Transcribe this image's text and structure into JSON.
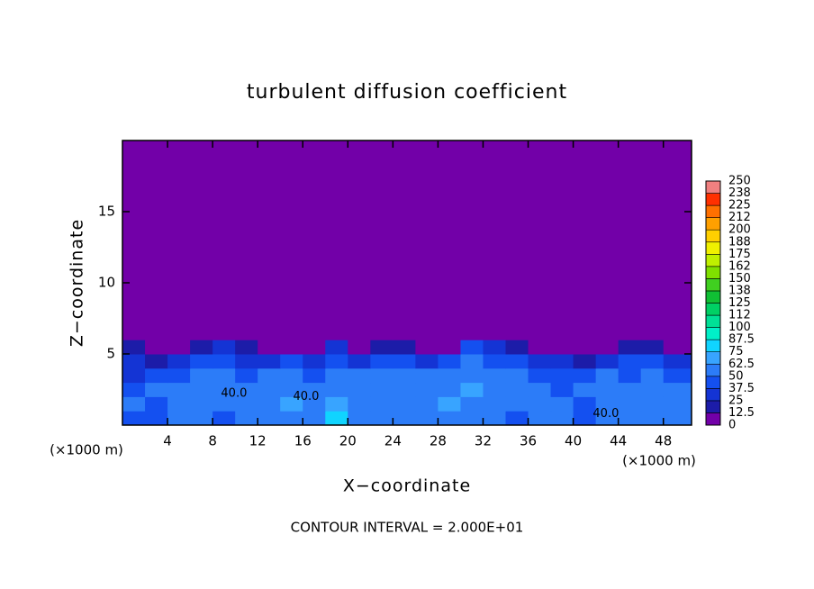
{
  "chart_data": {
    "type": "heatmap",
    "title": "turbulent diffusion coefficient",
    "x_label": "X−coordinate",
    "y_label": "Z−coordinate",
    "x_unit": "(×1000 m)",
    "y_unit": "(×1000 m)",
    "footer": "CONTOUR INTERVAL = 2.000E+01",
    "xlim": [
      0,
      50.5
    ],
    "ylim": [
      0,
      20
    ],
    "xticks": [
      4,
      8,
      12,
      16,
      20,
      24,
      28,
      32,
      36,
      40,
      44,
      48
    ],
    "yticks": [
      5,
      10,
      15
    ],
    "x_edges": [
      0,
      2,
      4,
      6,
      8,
      10,
      12,
      14,
      16,
      18,
      20,
      22,
      24,
      26,
      28,
      30,
      32,
      34,
      36,
      38,
      40,
      42,
      44,
      46,
      48,
      50.5
    ],
    "z_edges": [
      0,
      1,
      2,
      3,
      4,
      5,
      6,
      20
    ],
    "z": [
      [
        45,
        40,
        55,
        50,
        45,
        50,
        55,
        60,
        55,
        75,
        55,
        60,
        50,
        55,
        60,
        55,
        50,
        45,
        55,
        60,
        40,
        50,
        55,
        60,
        55
      ],
      [
        50,
        45,
        60,
        55,
        50,
        55,
        60,
        65,
        60,
        65,
        55,
        60,
        55,
        60,
        65,
        60,
        55,
        50,
        60,
        55,
        45,
        55,
        60,
        55,
        50
      ],
      [
        40,
        55,
        50,
        60,
        55,
        60,
        55,
        60,
        55,
        50,
        60,
        55,
        60,
        55,
        60,
        65,
        55,
        60,
        55,
        45,
        50,
        55,
        50,
        60,
        50
      ],
      [
        35,
        45,
        40,
        55,
        50,
        45,
        50,
        55,
        45,
        55,
        50,
        60,
        55,
        50,
        55,
        60,
        50,
        55,
        45,
        40,
        45,
        50,
        45,
        55,
        45
      ],
      [
        30,
        20,
        25,
        45,
        40,
        35,
        30,
        40,
        35,
        45,
        30,
        45,
        40,
        30,
        45,
        50,
        40,
        45,
        35,
        30,
        20,
        30,
        40,
        45,
        35
      ],
      [
        15,
        5,
        5,
        20,
        25,
        15,
        5,
        10,
        10,
        30,
        10,
        20,
        15,
        5,
        10,
        40,
        30,
        20,
        10,
        10,
        5,
        10,
        15,
        20,
        10
      ],
      [
        0,
        0,
        0,
        0,
        0,
        0,
        0,
        0,
        0,
        0,
        0,
        0,
        0,
        0,
        0,
        0,
        0,
        0,
        0,
        0,
        0,
        0,
        0,
        0,
        0
      ]
    ],
    "levels": [
      0,
      12.5,
      25,
      37.5,
      50,
      62.5,
      75,
      87.5,
      100,
      112,
      125,
      138,
      150,
      162,
      175,
      188,
      200,
      212,
      225,
      238,
      250
    ],
    "colors": [
      "#7200a8",
      "#1c1ca8",
      "#1434d4",
      "#1450f0",
      "#2c7cf8",
      "#38a4ff",
      "#10d4ff",
      "#00f0c8",
      "#00e096",
      "#00d064",
      "#10c034",
      "#40d020",
      "#80e000",
      "#c0f000",
      "#f0f000",
      "#ffd000",
      "#ffa000",
      "#ff7000",
      "#ff3000",
      "#f08080"
    ],
    "contour_labels": [
      {
        "text": "40.0",
        "x": 9.9,
        "z": 2.2
      },
      {
        "text": "40.0",
        "x": 16.3,
        "z": 2.0
      },
      {
        "text": "40.0",
        "x": 42.9,
        "z": 0.8
      }
    ]
  }
}
